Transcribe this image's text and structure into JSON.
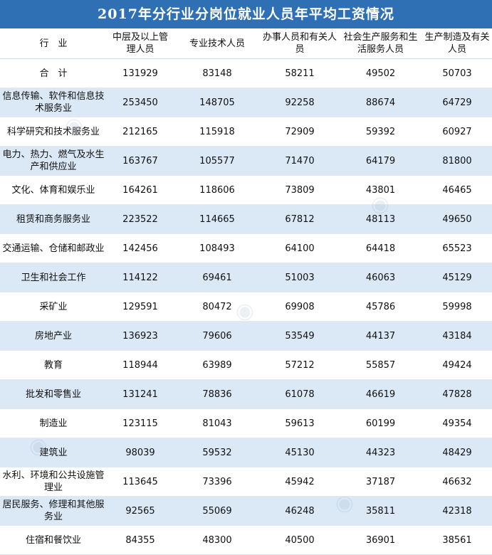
{
  "title": "2017年分行业分岗位就业人员年平均工资情况",
  "headers": [
    "行　业",
    "中层及以上管理人员",
    "专业技术人员",
    "办事人员和有关人员",
    "社会生产服务和生活服务人员",
    "生产制造及有关人员"
  ],
  "rows": [
    {
      "industry": "合　计",
      "values": [
        "131929",
        "83148",
        "58211",
        "49502",
        "50703"
      ]
    },
    {
      "industry": "信息传输、软件和信息技术服务业",
      "values": [
        "253450",
        "148705",
        "92258",
        "88674",
        "64729"
      ]
    },
    {
      "industry": "科学研究和技术服务业",
      "values": [
        "212165",
        "115918",
        "72909",
        "59392",
        "60927"
      ]
    },
    {
      "industry": "电力、热力、燃气及水生产和供应业",
      "values": [
        "163767",
        "105577",
        "71470",
        "64179",
        "81800"
      ]
    },
    {
      "industry": "文化、体育和娱乐业",
      "values": [
        "164261",
        "118606",
        "73809",
        "43801",
        "46465"
      ]
    },
    {
      "industry": "租赁和商务服务业",
      "values": [
        "223522",
        "114665",
        "67812",
        "48113",
        "49650"
      ]
    },
    {
      "industry": "交通运输、仓储和邮政业",
      "values": [
        "142456",
        "108493",
        "64100",
        "64418",
        "65523"
      ]
    },
    {
      "industry": "卫生和社会工作",
      "values": [
        "114122",
        "69461",
        "51003",
        "46063",
        "45129"
      ]
    },
    {
      "industry": "采矿业",
      "values": [
        "129591",
        "80472",
        "69908",
        "45786",
        "59998"
      ]
    },
    {
      "industry": "房地产业",
      "values": [
        "136923",
        "79606",
        "53549",
        "44137",
        "43184"
      ]
    },
    {
      "industry": "教育",
      "values": [
        "118944",
        "63989",
        "57212",
        "55857",
        "49424"
      ]
    },
    {
      "industry": "批发和零售业",
      "values": [
        "131241",
        "78836",
        "61078",
        "46619",
        "47828"
      ]
    },
    {
      "industry": "制造业",
      "values": [
        "123115",
        "81043",
        "59613",
        "60199",
        "49354"
      ]
    },
    {
      "industry": "建筑业",
      "values": [
        "98039",
        "59532",
        "45130",
        "44323",
        "48429"
      ]
    },
    {
      "industry": "水利、环境和公共设施管理业",
      "values": [
        "113645",
        "73396",
        "45942",
        "37187",
        "46632"
      ]
    },
    {
      "industry": "居民服务、修理和其他服务业",
      "values": [
        "92565",
        "55069",
        "46248",
        "35811",
        "42318"
      ]
    },
    {
      "industry": "住宿和餐饮业",
      "values": [
        "84355",
        "48300",
        "40500",
        "36901",
        "38561"
      ]
    }
  ]
}
